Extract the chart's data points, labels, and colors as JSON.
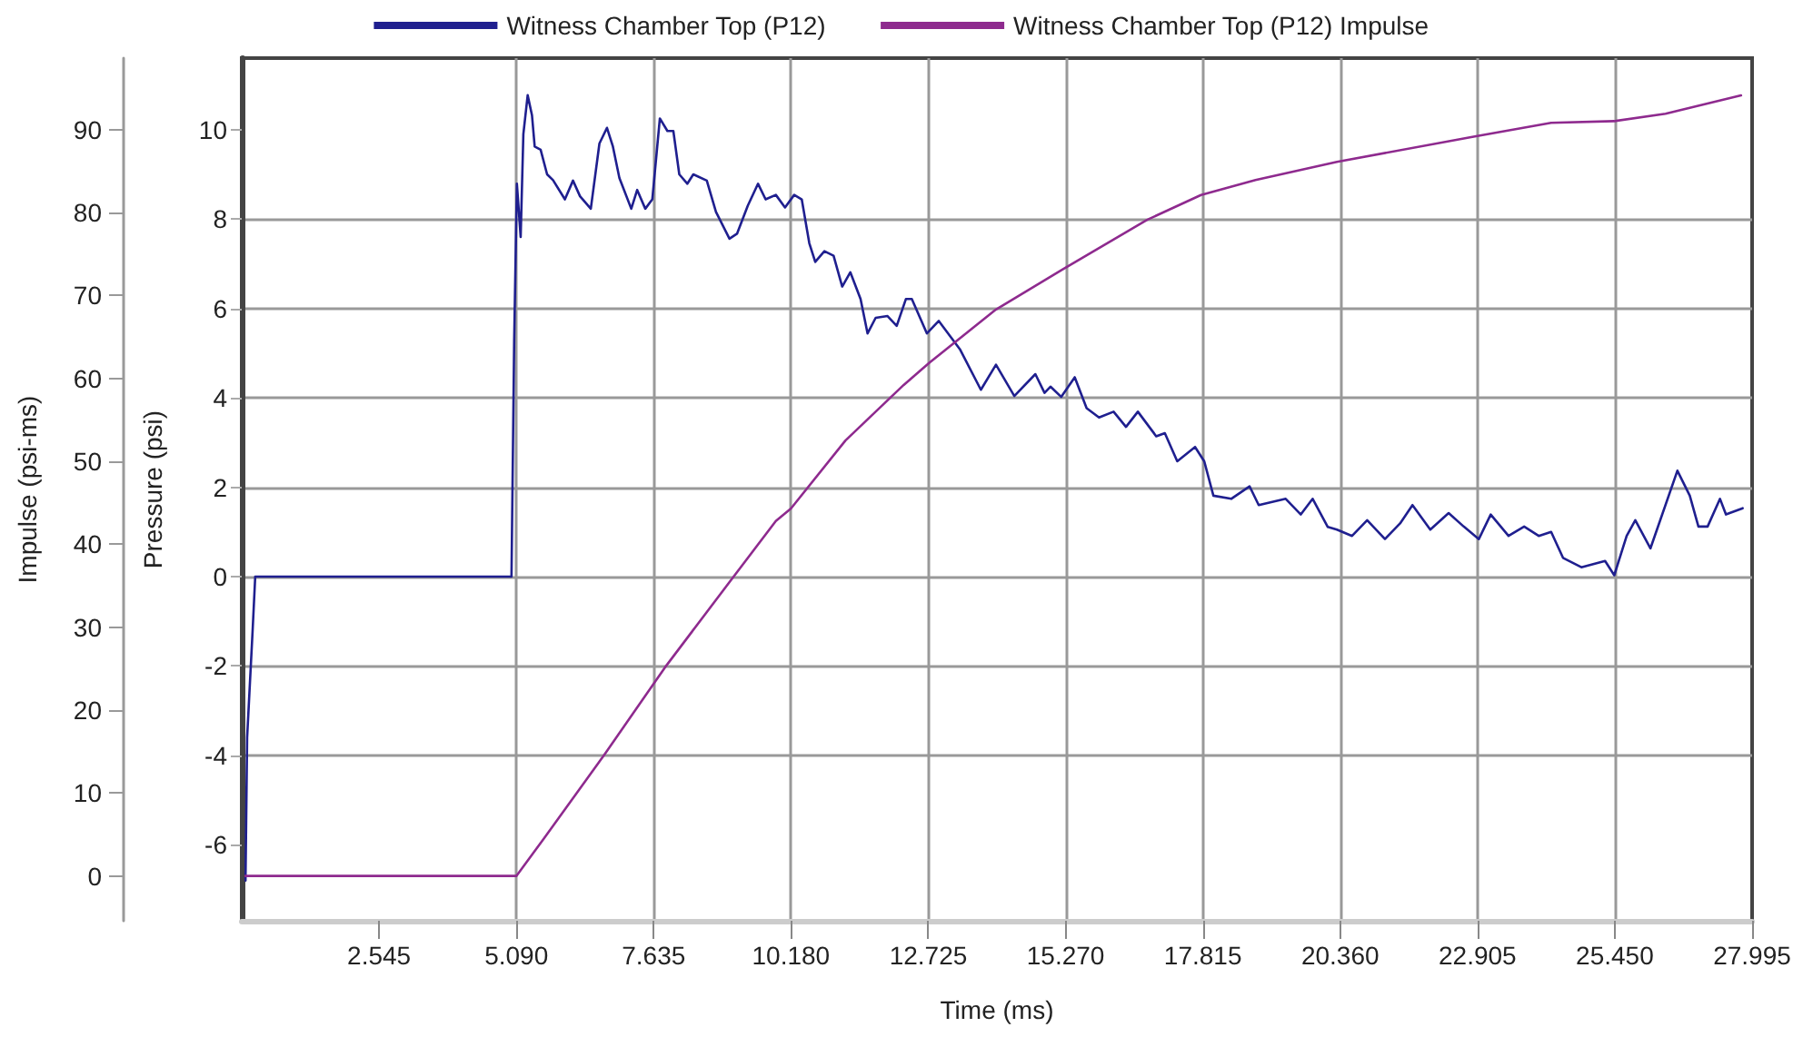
{
  "chart_data": {
    "type": "line",
    "xlabel": "Time (ms)",
    "ylabel": "Pressure (psi)",
    "y2label": "Impulse (psi-ms)",
    "xlim": [
      0,
      27.995
    ],
    "xticks": [
      2.545,
      {
        "value": 5.09,
        "label": "5.090"
      },
      7.635,
      {
        "value": 10.18,
        "label": "10.180"
      },
      12.725,
      {
        "value": 15.27,
        "label": "15.270"
      },
      17.815,
      {
        "value": 20.36,
        "label": "20.360"
      },
      22.905,
      {
        "value": 25.45,
        "label": "25.450"
      },
      27.995
    ],
    "ylim": [
      -7.7,
      11.6
    ],
    "yticks": [
      -6,
      -4,
      -2,
      0,
      2,
      4,
      6,
      8,
      10
    ],
    "y2lim": [
      -5.4,
      98.6
    ],
    "y2ticks": [
      0,
      10,
      20,
      30,
      40,
      50,
      60,
      70,
      80,
      90
    ],
    "grid": true,
    "legend": "top",
    "marker": "none",
    "line_style": "solid",
    "series": [
      {
        "name": "Witness Chamber Top (P12)",
        "color": "#1f1f8f",
        "x": [
          0.07,
          0.1,
          0.2,
          0.25,
          5.0,
          5.05,
          5.1,
          5.17,
          5.22,
          5.3,
          5.38,
          5.43,
          5.54,
          5.66,
          5.77,
          5.99,
          6.14,
          6.27,
          6.47,
          6.63,
          6.77,
          6.88,
          7.0,
          7.22,
          7.33,
          7.48,
          7.61,
          7.75,
          7.89,
          8.0,
          8.11,
          8.26,
          8.37,
          8.62,
          8.79,
          9.04,
          9.18,
          9.38,
          9.57,
          9.71,
          9.9,
          10.07,
          10.24,
          10.38,
          10.52,
          10.63,
          10.8,
          10.97,
          11.13,
          11.28,
          11.47,
          11.6,
          11.75,
          11.97,
          12.14,
          12.31,
          12.42,
          12.7,
          12.92,
          13.31,
          13.7,
          13.98,
          14.32,
          14.71,
          14.88,
          14.99,
          15.19,
          15.44,
          15.66,
          15.89,
          16.16,
          16.39,
          16.61,
          16.95,
          17.11,
          17.34,
          17.67,
          17.84,
          18.01,
          18.34,
          18.68,
          18.85,
          19.35,
          19.63,
          19.85,
          20.13,
          20.3,
          20.58,
          20.86,
          21.19,
          21.47,
          21.7,
          22.03,
          22.37,
          22.65,
          22.93,
          23.15,
          23.48,
          23.77,
          24.04,
          24.27,
          24.49,
          24.83,
          25.27,
          25.44,
          25.67,
          25.83,
          26.11,
          26.61,
          26.84,
          27.0,
          27.17,
          27.4,
          27.51,
          27.82
        ],
        "values": [
          -6.8,
          -3.6,
          -1.25,
          0,
          0,
          5.3,
          8.79,
          7.6,
          9.9,
          10.77,
          10.32,
          9.62,
          9.55,
          9.0,
          8.87,
          8.44,
          8.86,
          8.51,
          8.23,
          9.69,
          10.04,
          9.62,
          8.92,
          8.23,
          8.65,
          8.23,
          8.44,
          10.25,
          9.97,
          9.97,
          9.0,
          8.79,
          9.0,
          8.86,
          8.16,
          7.56,
          7.67,
          8.3,
          8.79,
          8.44,
          8.54,
          8.26,
          8.54,
          8.44,
          7.46,
          7.04,
          7.28,
          7.18,
          6.49,
          6.81,
          6.21,
          5.44,
          5.79,
          5.83,
          5.61,
          6.21,
          6.21,
          5.44,
          5.72,
          5.09,
          4.18,
          4.74,
          4.04,
          4.53,
          4.11,
          4.25,
          4.02,
          4.46,
          3.77,
          3.56,
          3.69,
          3.35,
          3.69,
          3.14,
          3.21,
          2.58,
          2.9,
          2.58,
          1.81,
          1.74,
          2.02,
          1.6,
          1.74,
          1.39,
          1.74,
          1.11,
          1.05,
          0.91,
          1.26,
          0.84,
          1.19,
          1.6,
          1.05,
          1.42,
          1.12,
          0.84,
          1.39,
          0.91,
          1.12,
          0.91,
          1.0,
          0.42,
          0.21,
          0.35,
          0.03,
          0.91,
          1.26,
          0.63,
          2.37,
          1.81,
          1.12,
          1.12,
          1.74,
          1.39,
          1.53
        ]
      },
      {
        "name": "Witness Chamber Top (P12) Impulse",
        "color": "#8e2a8e",
        "axis": "y2",
        "x": [
          0.07,
          5.09,
          5.6,
          6.72,
          7.84,
          9.06,
          9.9,
          10.18,
          11.19,
          12.27,
          12.75,
          13.98,
          15.21,
          16.78,
          17.78,
          18.79,
          20.3,
          22.81,
          24.27,
          25.44,
          26.39,
          27.79
        ],
        "values": [
          0,
          0,
          4.5,
          14.6,
          25.1,
          35.6,
          42.8,
          44.3,
          52.5,
          59.2,
          61.9,
          68.3,
          73.1,
          79.1,
          82.1,
          83.9,
          86.1,
          89.1,
          90.8,
          91.0,
          91.9,
          94.1
        ]
      }
    ]
  }
}
